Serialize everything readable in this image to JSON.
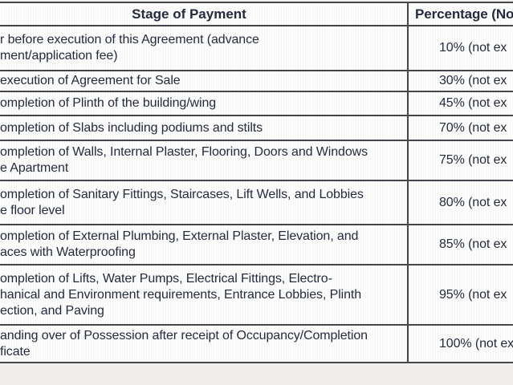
{
  "table": {
    "columns": [
      {
        "label": "Stage of Payment"
      },
      {
        "label": "Percentage (No"
      }
    ],
    "rows": [
      {
        "stage_lines": [
          "r before execution of this Agreement (advance",
          "ment/application fee)"
        ],
        "percentage": "10% (not ex"
      },
      {
        "stage_lines": [
          "execution of Agreement for Sale"
        ],
        "percentage": "30% (not ex"
      },
      {
        "stage_lines": [
          "ompletion of Plinth of the building/wing"
        ],
        "percentage": "45% (not ex"
      },
      {
        "stage_lines": [
          "ompletion of Slabs including podiums and stilts"
        ],
        "percentage": "70% (not ex"
      },
      {
        "stage_lines": [
          "ompletion of Walls, Internal Plaster, Flooring, Doors and Windows",
          "e Apartment"
        ],
        "percentage": "75% (not ex"
      },
      {
        "stage_lines": [
          "ompletion of Sanitary Fittings, Staircases, Lift Wells, and Lobbies",
          "e floor level"
        ],
        "percentage": "80% (not ex"
      },
      {
        "stage_lines": [
          "ompletion of External Plumbing, External Plaster, Elevation, and",
          "aces with Waterproofing"
        ],
        "percentage": "85% (not ex"
      },
      {
        "stage_lines": [
          "ompletion of Lifts, Water Pumps, Electrical Fittings, Electro-",
          "hanical and Environment requirements, Entrance Lobbies, Plinth",
          "ection, and Paving"
        ],
        "percentage": "95% (not ex"
      },
      {
        "stage_lines": [
          "anding over of Possession after receipt of Occupancy/Completion",
          "ficate"
        ],
        "percentage": "100% (not ex"
      }
    ]
  },
  "colors": {
    "text": "#242b3d",
    "border": "#45474c",
    "cell_background": "#fcfcfb",
    "outside_background": "#efeeec"
  }
}
